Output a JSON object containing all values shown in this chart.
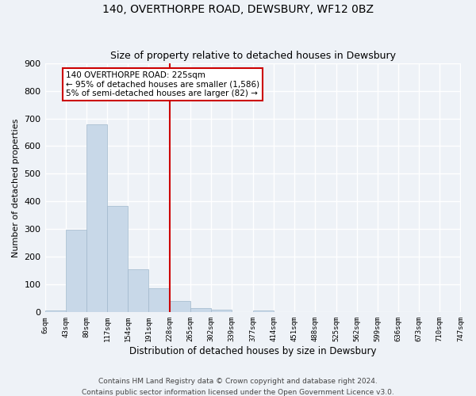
{
  "title": "140, OVERTHORPE ROAD, DEWSBURY, WF12 0BZ",
  "subtitle": "Size of property relative to detached houses in Dewsbury",
  "xlabel": "Distribution of detached houses by size in Dewsbury",
  "ylabel": "Number of detached properties",
  "bin_edges": [
    6,
    43,
    80,
    117,
    154,
    191,
    228,
    265,
    302,
    339,
    377,
    414,
    451,
    488,
    525,
    562,
    599,
    636,
    673,
    710,
    747
  ],
  "bar_heights": [
    8,
    298,
    678,
    383,
    155,
    88,
    40,
    15,
    10,
    0,
    8,
    0,
    0,
    0,
    0,
    0,
    0,
    0,
    0,
    0
  ],
  "bar_color": "#c8d8e8",
  "bar_edgecolor": "#a0b8cc",
  "vline_color": "#cc0000",
  "vline_x": 228,
  "annotation_text": "140 OVERTHORPE ROAD: 225sqm\n← 95% of detached houses are smaller (1,586)\n5% of semi-detached houses are larger (82) →",
  "annotation_box_color": "#ffffff",
  "annotation_box_edgecolor": "#cc0000",
  "ylim": [
    0,
    900
  ],
  "yticks": [
    0,
    100,
    200,
    300,
    400,
    500,
    600,
    700,
    800,
    900
  ],
  "tick_labels": [
    "6sqm",
    "43sqm",
    "80sqm",
    "117sqm",
    "154sqm",
    "191sqm",
    "228sqm",
    "265sqm",
    "302sqm",
    "339sqm",
    "377sqm",
    "414sqm",
    "451sqm",
    "488sqm",
    "525sqm",
    "562sqm",
    "599sqm",
    "636sqm",
    "673sqm",
    "710sqm",
    "747sqm"
  ],
  "footer_text": "Contains HM Land Registry data © Crown copyright and database right 2024.\nContains public sector information licensed under the Open Government Licence v3.0.",
  "bg_color": "#eef2f7",
  "grid_color": "#ffffff",
  "title_fontsize": 10,
  "subtitle_fontsize": 9,
  "ylabel_fontsize": 8,
  "xlabel_fontsize": 8.5,
  "tick_fontsize": 6.5,
  "ytick_fontsize": 8,
  "footer_fontsize": 6.5,
  "annot_fontsize": 7.5
}
